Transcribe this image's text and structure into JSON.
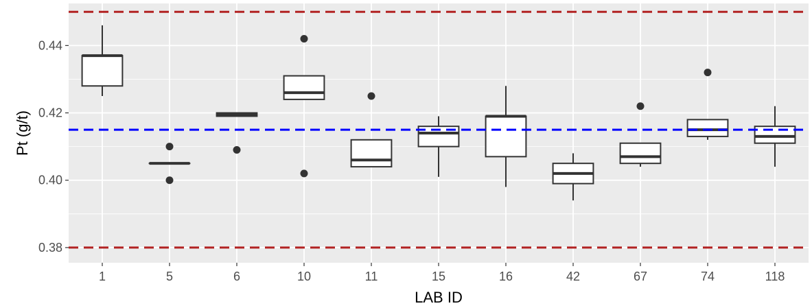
{
  "chart_data": {
    "type": "boxplot",
    "xlabel": "LAB ID",
    "ylabel": "Pt (g/t)",
    "ylim": [
      0.3755,
      0.4525
    ],
    "y_ticks": [
      0.38,
      0.4,
      0.42,
      0.44
    ],
    "y_tick_labels": [
      "0.38",
      "0.40",
      "0.42",
      "0.44"
    ],
    "grid": true,
    "reference_lines": [
      {
        "value": 0.415,
        "color": "#0000ff",
        "style": "dashed"
      },
      {
        "value": 0.45,
        "color": "#b22222",
        "style": "dashed"
      },
      {
        "value": 0.38,
        "color": "#b22222",
        "style": "dashed"
      }
    ],
    "categories": [
      "1",
      "5",
      "6",
      "10",
      "11",
      "15",
      "16",
      "42",
      "67",
      "74",
      "118"
    ],
    "boxes": [
      {
        "lab": "1",
        "min": 0.425,
        "q1": 0.428,
        "median": 0.437,
        "q3": 0.437,
        "max": 0.446,
        "outliers": []
      },
      {
        "lab": "5",
        "min": 0.405,
        "q1": 0.405,
        "median": 0.405,
        "q3": 0.405,
        "max": 0.405,
        "outliers": [
          0.41,
          0.4
        ]
      },
      {
        "lab": "6",
        "min": 0.419,
        "q1": 0.419,
        "median": 0.4195,
        "q3": 0.42,
        "max": 0.42,
        "outliers": [
          0.409
        ]
      },
      {
        "lab": "10",
        "min": 0.424,
        "q1": 0.424,
        "median": 0.426,
        "q3": 0.431,
        "max": 0.431,
        "outliers": [
          0.442,
          0.402
        ]
      },
      {
        "lab": "11",
        "min": 0.404,
        "q1": 0.404,
        "median": 0.406,
        "q3": 0.412,
        "max": 0.412,
        "outliers": [
          0.425
        ]
      },
      {
        "lab": "15",
        "min": 0.401,
        "q1": 0.41,
        "median": 0.414,
        "q3": 0.416,
        "max": 0.419,
        "outliers": []
      },
      {
        "lab": "16",
        "min": 0.398,
        "q1": 0.407,
        "median": 0.419,
        "q3": 0.419,
        "max": 0.428,
        "outliers": []
      },
      {
        "lab": "42",
        "min": 0.394,
        "q1": 0.399,
        "median": 0.402,
        "q3": 0.405,
        "max": 0.408,
        "outliers": []
      },
      {
        "lab": "67",
        "min": 0.404,
        "q1": 0.405,
        "median": 0.407,
        "q3": 0.411,
        "max": 0.411,
        "outliers": [
          0.422
        ]
      },
      {
        "lab": "74",
        "min": 0.412,
        "q1": 0.413,
        "median": 0.415,
        "q3": 0.418,
        "max": 0.418,
        "outliers": [
          0.432
        ]
      },
      {
        "lab": "118",
        "min": 0.404,
        "q1": 0.411,
        "median": 0.413,
        "q3": 0.416,
        "max": 0.422,
        "outliers": []
      }
    ],
    "colors": {
      "panel_background": "#ebebeb",
      "grid": "#ffffff",
      "box_fill": "#ffffff",
      "box_stroke": "#333333",
      "outlier": "#333333"
    }
  }
}
